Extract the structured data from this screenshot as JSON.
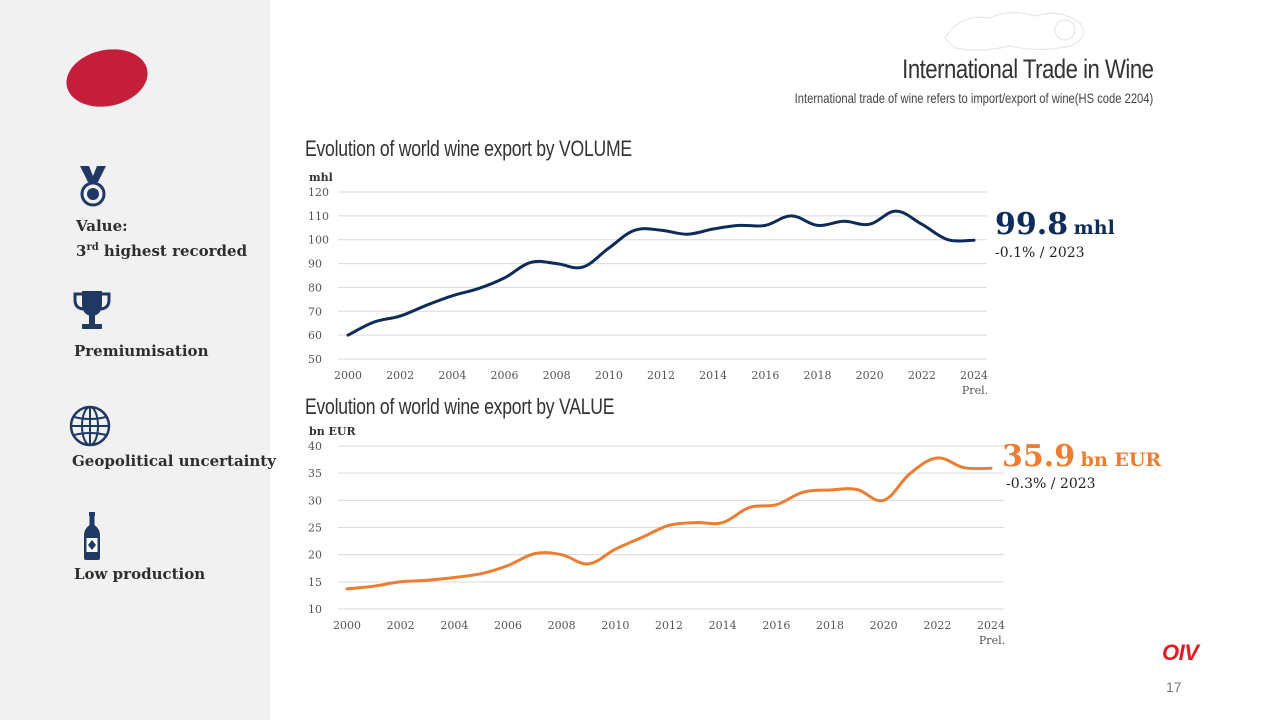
{
  "header": {
    "title": "International Trade in Wine",
    "subtitle": "International trade of wine refers to import/export of wine(HS code 2204)"
  },
  "sidebar": {
    "items": [
      {
        "icon": "medal-icon",
        "line1": "Value:",
        "line2_prefix": "3",
        "line2_sup": "rd",
        "line2_suffix": " highest recorded"
      },
      {
        "icon": "trophy-icon",
        "label": "Premiumisation"
      },
      {
        "icon": "globe-icon",
        "label": "Geopolitical uncertainty"
      },
      {
        "icon": "wine-bottle-icon",
        "label": "Low production"
      }
    ]
  },
  "chart_data": [
    {
      "type": "line",
      "title": "Evolution of world wine export by VOLUME",
      "ylabel": "mhl",
      "xlabel": "",
      "x": [
        2000,
        2001,
        2002,
        2003,
        2004,
        2005,
        2006,
        2007,
        2008,
        2009,
        2010,
        2011,
        2012,
        2013,
        2014,
        2015,
        2016,
        2017,
        2018,
        2019,
        2020,
        2021,
        2022,
        2023,
        2024
      ],
      "values": [
        60,
        65.5,
        68,
        72.5,
        76.5,
        79.5,
        84,
        90.5,
        90,
        88.5,
        96.5,
        104,
        104,
        102.3,
        104.5,
        106,
        106,
        110,
        106,
        107.7,
        106.5,
        112,
        106.5,
        100,
        99.8
      ],
      "ylim": [
        50,
        120
      ],
      "yticks": [
        50,
        60,
        70,
        80,
        90,
        100,
        110,
        120
      ],
      "xticks": [
        2000,
        2002,
        2004,
        2006,
        2008,
        2010,
        2012,
        2014,
        2016,
        2018,
        2020,
        2022,
        2024
      ],
      "last_tick_note": "Prel.",
      "color": "#0d2c5a",
      "headline_value": "99.8",
      "headline_unit": "mhl",
      "headline_change": "-0.1% / 2023"
    },
    {
      "type": "line",
      "title": "Evolution of world wine export by VALUE",
      "ylabel": "bn EUR",
      "xlabel": "",
      "x": [
        2000,
        2001,
        2002,
        2003,
        2004,
        2005,
        2006,
        2007,
        2008,
        2009,
        2010,
        2011,
        2012,
        2013,
        2014,
        2015,
        2016,
        2017,
        2018,
        2019,
        2020,
        2021,
        2022,
        2023,
        2024
      ],
      "values": [
        13.7,
        14.2,
        15,
        15.3,
        15.8,
        16.5,
        18,
        20.2,
        20,
        18.3,
        21,
        23.2,
        25.4,
        25.9,
        25.9,
        28.7,
        29.2,
        31.5,
        31.9,
        32,
        30,
        35,
        37.8,
        36,
        35.9
      ],
      "ylim": [
        10,
        40
      ],
      "yticks": [
        10,
        15,
        20,
        25,
        30,
        35,
        40
      ],
      "xticks": [
        2000,
        2002,
        2004,
        2006,
        2008,
        2010,
        2012,
        2014,
        2016,
        2018,
        2020,
        2022,
        2024
      ],
      "last_tick_note": "Prel.",
      "color": "#ed7d31",
      "headline_value": "35.9",
      "headline_unit": "bn EUR",
      "headline_change": "-0.3% / 2023"
    }
  ],
  "footer": {
    "brand": "OIV",
    "page_number": "17"
  },
  "colors": {
    "sidebar_bg": "#f1f1f1",
    "icon_navy": "#1f3864",
    "brand_red": "#c41e3a"
  }
}
